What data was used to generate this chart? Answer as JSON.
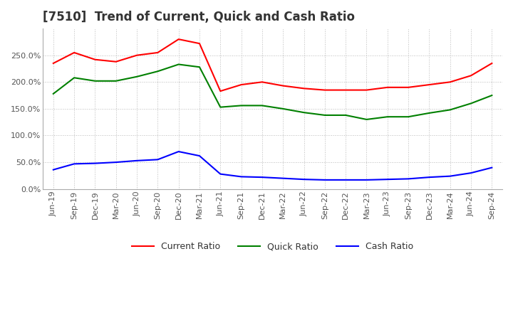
{
  "title": "[7510]  Trend of Current, Quick and Cash Ratio",
  "x_labels": [
    "Jun-19",
    "Sep-19",
    "Dec-19",
    "Mar-20",
    "Jun-20",
    "Sep-20",
    "Dec-20",
    "Mar-21",
    "Jun-21",
    "Sep-21",
    "Dec-21",
    "Mar-22",
    "Jun-22",
    "Sep-22",
    "Dec-22",
    "Mar-23",
    "Jun-23",
    "Sep-23",
    "Dec-23",
    "Mar-24",
    "Jun-24",
    "Sep-24"
  ],
  "current_ratio": [
    2.35,
    2.55,
    2.42,
    2.38,
    2.5,
    2.55,
    2.8,
    2.72,
    1.83,
    1.95,
    2.0,
    1.93,
    1.88,
    1.85,
    1.85,
    1.85,
    1.9,
    1.9,
    1.95,
    2.0,
    2.12,
    2.35
  ],
  "quick_ratio": [
    1.78,
    2.08,
    2.02,
    2.02,
    2.1,
    2.2,
    2.33,
    2.28,
    1.53,
    1.56,
    1.56,
    1.5,
    1.43,
    1.38,
    1.38,
    1.3,
    1.35,
    1.35,
    1.42,
    1.48,
    1.6,
    1.75
  ],
  "cash_ratio": [
    0.36,
    0.47,
    0.48,
    0.5,
    0.53,
    0.55,
    0.7,
    0.62,
    0.28,
    0.23,
    0.22,
    0.2,
    0.18,
    0.17,
    0.17,
    0.17,
    0.18,
    0.19,
    0.22,
    0.24,
    0.3,
    0.4
  ],
  "current_color": "#ff0000",
  "quick_color": "#008000",
  "cash_color": "#0000ff",
  "ylim_min": 0.0,
  "ylim_max": 3.0,
  "yticks": [
    0.0,
    0.5,
    1.0,
    1.5,
    2.0,
    2.5
  ],
  "ytick_labels": [
    "0.0%",
    "50.0%",
    "100.0%",
    "150.0%",
    "200.0%",
    "250.0%"
  ],
  "background_color": "#ffffff",
  "grid_color": "#bbbbbb",
  "title_fontsize": 12,
  "tick_fontsize": 8,
  "legend_labels": [
    "Current Ratio",
    "Quick Ratio",
    "Cash Ratio"
  ]
}
